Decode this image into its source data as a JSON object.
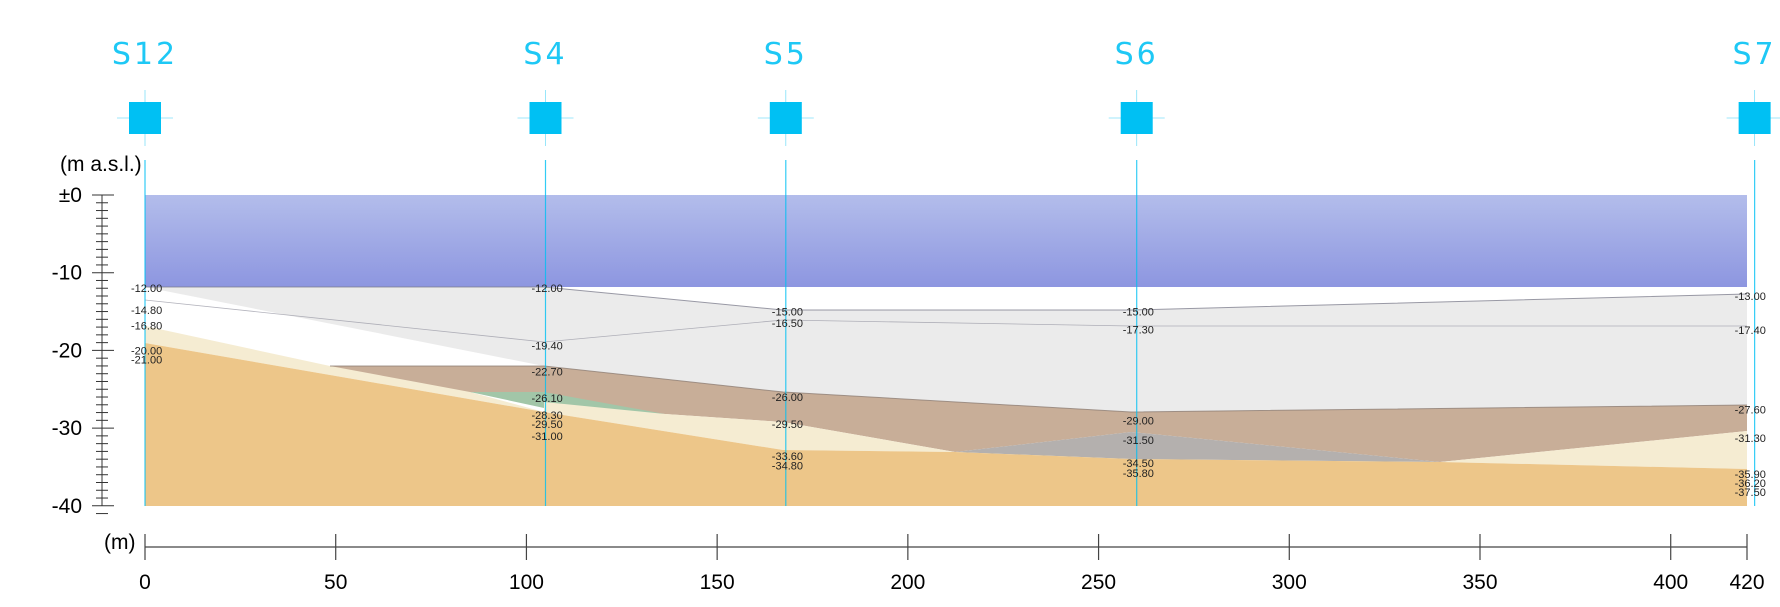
{
  "units": {
    "elevation": "(m a.s.l.)",
    "distance": "(m)"
  },
  "x_axis": {
    "ticks": [
      0,
      50,
      100,
      150,
      200,
      250,
      300,
      350,
      400,
      420
    ],
    "labels": [
      "0",
      "50",
      "100",
      "150",
      "200",
      "250",
      "300",
      "350",
      "400",
      "420"
    ]
  },
  "y_axis": {
    "ticks": [
      0,
      -10,
      -20,
      -30,
      -40
    ],
    "labels": [
      "±0",
      "-10",
      "-20",
      "-30",
      "-40"
    ]
  },
  "boreholes": [
    {
      "name": "S12",
      "x": 0,
      "depths": [
        "-12.00",
        "-14.80",
        "-16.80",
        "-20.00",
        "-21.00"
      ]
    },
    {
      "name": "S4",
      "x": 105,
      "depths": [
        "-12.00",
        "-19.40",
        "-22.70",
        "-26.10",
        "-28.30",
        "-29.50",
        "-31.00"
      ]
    },
    {
      "name": "S5",
      "x": 168,
      "depths": [
        "-15.00",
        "-16.50",
        "-26.00",
        "-29.50",
        "-33.60",
        "-34.80"
      ]
    },
    {
      "name": "S6",
      "x": 260,
      "depths": [
        "-15.00",
        "-17.30",
        "-29.00",
        "-31.50",
        "-34.50",
        "-35.80"
      ]
    },
    {
      "name": "S7",
      "x": 422,
      "depths": [
        "-13.00",
        "-17.40",
        "-27.60",
        "-31.30",
        "-35.90",
        "-36.20",
        "-37.50"
      ]
    }
  ],
  "colors": {
    "water_top": "#8f9ae0",
    "water_bottom": "#b0bcec",
    "clay_light": "#ebebeb",
    "clay_brown": "#c8ae98",
    "sand_cream": "#f7eed0",
    "green": "#9fc5a7",
    "grey": "#b3b0ae",
    "sand_orange": "#eec688",
    "borehole": "#00c0f3"
  }
}
